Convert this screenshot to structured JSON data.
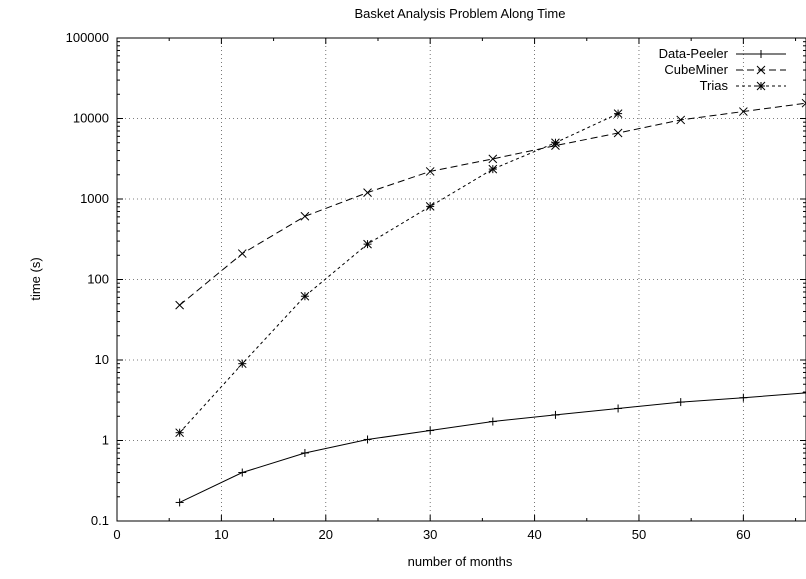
{
  "chart_data": {
    "type": "line",
    "title": "Basket Analysis Problem Along Time",
    "xlabel": "number of months",
    "ylabel": "time (s)",
    "xlim": [
      0,
      66
    ],
    "ylim": [
      0.1,
      100000
    ],
    "yscale": "log",
    "grid": true,
    "legend_position": "top-right",
    "x_ticks": [
      0,
      10,
      20,
      30,
      40,
      50,
      60
    ],
    "x_tick_labels": [
      "0",
      "10",
      "20",
      "30",
      "40",
      "50",
      "60"
    ],
    "y_ticks": [
      0.1,
      1,
      10,
      100,
      1000,
      10000,
      100000
    ],
    "y_tick_labels": [
      "0.1",
      "1",
      "10",
      "100",
      "1000",
      "10000",
      "100000"
    ],
    "series": [
      {
        "name": "Data-Peeler",
        "marker": "plus",
        "dash": "none",
        "x": [
          6,
          12,
          18,
          24,
          30,
          36,
          42,
          48,
          54,
          60,
          66
        ],
        "y": [
          0.17,
          0.4,
          0.7,
          1.03,
          1.33,
          1.72,
          2.08,
          2.5,
          3.0,
          3.4,
          3.9
        ]
      },
      {
        "name": "CubeMiner",
        "marker": "cross",
        "dash": "long",
        "x": [
          6,
          12,
          18,
          24,
          30,
          36,
          42,
          48,
          54,
          60,
          66
        ],
        "y": [
          48,
          210,
          610,
          1200,
          2200,
          3150,
          4600,
          6600,
          9600,
          12200,
          15500
        ]
      },
      {
        "name": "Trias",
        "marker": "star",
        "dash": "short",
        "x": [
          6,
          12,
          18,
          24,
          30,
          36,
          42,
          48
        ],
        "y": [
          1.25,
          9,
          62,
          275,
          810,
          2350,
          5000,
          11500
        ]
      }
    ]
  }
}
